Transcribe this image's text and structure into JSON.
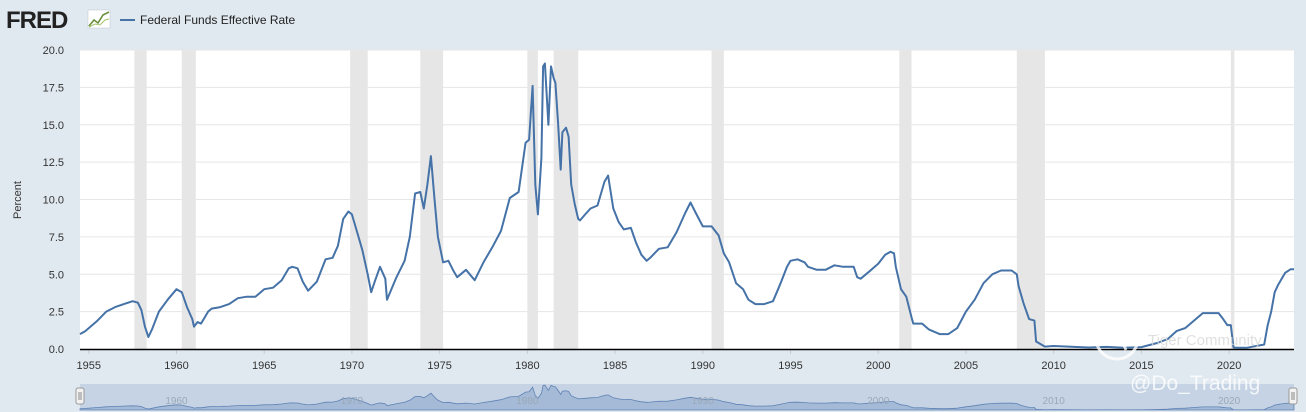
{
  "header": {
    "logo_text": "FRED",
    "logo_icon": "fred-chart-icon",
    "series_color": "#4572a7"
  },
  "watermark": {
    "community": "Tiger Community",
    "handle": "@Do_Trading"
  },
  "navigator": {
    "labels": [
      "1960",
      "1970",
      "1980",
      "1990",
      "2000",
      "2010",
      "2020"
    ]
  },
  "chart_data": {
    "type": "line",
    "title": "",
    "xlabel": "",
    "ylabel": "Percent",
    "xlim": [
      1954.5,
      2023.7
    ],
    "ylim": [
      0,
      20
    ],
    "y_ticks": [
      "0.0",
      "2.5",
      "5.0",
      "7.5",
      "10.0",
      "12.5",
      "15.0",
      "17.5",
      "20.0"
    ],
    "x_ticks": [
      "1955",
      "1960",
      "1965",
      "1970",
      "1975",
      "1980",
      "1985",
      "1990",
      "1995",
      "2000",
      "2005",
      "2010",
      "2015",
      "2020"
    ],
    "grid": "horizontal",
    "legend": "top-left",
    "recessions": [
      [
        1957.6,
        1958.3
      ],
      [
        1960.3,
        1961.1
      ],
      [
        1969.9,
        1970.9
      ],
      [
        1973.9,
        1975.2
      ],
      [
        1980.0,
        1980.6
      ],
      [
        1981.5,
        1982.9
      ],
      [
        1990.5,
        1991.2
      ],
      [
        2001.2,
        2001.9
      ],
      [
        2007.9,
        2009.5
      ],
      [
        2020.1,
        2020.3
      ]
    ],
    "series": [
      {
        "name": "Federal Funds Effective Rate",
        "color": "#4572a7",
        "x": [
          1954.5,
          1954.8,
          1955.0,
          1955.5,
          1956.0,
          1956.5,
          1957.0,
          1957.5,
          1957.8,
          1958.0,
          1958.2,
          1958.4,
          1958.6,
          1959.0,
          1959.5,
          1960.0,
          1960.3,
          1960.6,
          1960.9,
          1961.0,
          1961.2,
          1961.4,
          1961.6,
          1961.8,
          1962.0,
          1962.5,
          1963.0,
          1963.5,
          1964.0,
          1964.5,
          1965.0,
          1965.5,
          1966.0,
          1966.4,
          1966.6,
          1966.9,
          1967.2,
          1967.5,
          1968.0,
          1968.5,
          1968.9,
          1969.2,
          1969.5,
          1969.8,
          1970.0,
          1970.3,
          1970.6,
          1970.9,
          1971.1,
          1971.3,
          1971.6,
          1971.9,
          1972.0,
          1972.5,
          1973.0,
          1973.3,
          1973.6,
          1973.9,
          1974.1,
          1974.3,
          1974.5,
          1974.7,
          1974.9,
          1975.2,
          1975.5,
          1975.8,
          1976.0,
          1976.5,
          1977.0,
          1977.5,
          1978.0,
          1978.5,
          1979.0,
          1979.5,
          1979.9,
          1980.1,
          1980.3,
          1980.45,
          1980.6,
          1980.8,
          1980.9,
          1981.0,
          1981.2,
          1981.35,
          1981.5,
          1981.6,
          1981.75,
          1981.9,
          1982.0,
          1982.2,
          1982.35,
          1982.5,
          1982.7,
          1982.9,
          1983.0,
          1983.3,
          1983.6,
          1984.0,
          1984.4,
          1984.6,
          1984.9,
          1985.2,
          1985.5,
          1985.9,
          1986.2,
          1986.5,
          1986.8,
          1987.0,
          1987.5,
          1988.0,
          1988.5,
          1989.0,
          1989.3,
          1989.6,
          1990.0,
          1990.5,
          1990.9,
          1991.2,
          1991.5,
          1991.9,
          1992.3,
          1992.6,
          1993.0,
          1993.5,
          1994.0,
          1994.4,
          1994.8,
          1995.0,
          1995.4,
          1995.8,
          1996.0,
          1996.5,
          1997.0,
          1997.5,
          1998.0,
          1998.6,
          1998.8,
          1999.0,
          1999.5,
          2000.0,
          2000.4,
          2000.7,
          2000.9,
          2001.0,
          2001.3,
          2001.6,
          2001.9,
          2002.0,
          2002.5,
          2002.9,
          2003.5,
          2004.0,
          2004.5,
          2005.0,
          2005.5,
          2006.0,
          2006.5,
          2007.0,
          2007.6,
          2007.9,
          2008.0,
          2008.3,
          2008.6,
          2008.9,
          2009.0,
          2009.5,
          2010.0,
          2011.0,
          2012.0,
          2013.0,
          2014.0,
          2015.0,
          2015.9,
          2016.5,
          2017.0,
          2017.5,
          2018.0,
          2018.5,
          2019.0,
          2019.4,
          2019.6,
          2019.9,
          2020.1,
          2020.25,
          2020.5,
          2021.0,
          2022.0,
          2022.2,
          2022.4,
          2022.6,
          2022.8,
          2022.95,
          2023.2,
          2023.5,
          2023.7
        ],
        "values": [
          1.0,
          1.2,
          1.4,
          1.9,
          2.5,
          2.8,
          3.0,
          3.2,
          3.1,
          2.6,
          1.5,
          0.8,
          1.3,
          2.5,
          3.3,
          4.0,
          3.8,
          2.8,
          2.0,
          1.5,
          1.8,
          1.7,
          2.1,
          2.5,
          2.7,
          2.8,
          3.0,
          3.4,
          3.5,
          3.5,
          4.0,
          4.1,
          4.6,
          5.4,
          5.5,
          5.4,
          4.5,
          3.9,
          4.5,
          6.0,
          6.1,
          6.9,
          8.7,
          9.2,
          9.0,
          7.8,
          6.6,
          5.0,
          3.8,
          4.5,
          5.5,
          4.7,
          3.3,
          4.7,
          5.9,
          7.5,
          10.4,
          10.5,
          9.4,
          11.0,
          12.9,
          10.1,
          7.5,
          5.8,
          5.9,
          5.2,
          4.8,
          5.3,
          4.6,
          5.8,
          6.8,
          7.9,
          10.1,
          10.5,
          13.8,
          14.0,
          17.6,
          11.0,
          9.0,
          12.8,
          18.9,
          19.1,
          15.0,
          18.9,
          18.1,
          17.8,
          15.1,
          12.0,
          14.5,
          14.8,
          14.2,
          11.0,
          9.7,
          8.7,
          8.6,
          9.0,
          9.4,
          9.6,
          11.2,
          11.6,
          9.4,
          8.5,
          8.0,
          8.1,
          7.1,
          6.3,
          5.9,
          6.1,
          6.7,
          6.8,
          7.8,
          9.1,
          9.8,
          9.1,
          8.2,
          8.2,
          7.6,
          6.4,
          5.8,
          4.4,
          4.0,
          3.3,
          3.0,
          3.0,
          3.2,
          4.3,
          5.5,
          5.9,
          6.0,
          5.8,
          5.5,
          5.3,
          5.3,
          5.6,
          5.5,
          5.5,
          4.8,
          4.7,
          5.2,
          5.7,
          6.3,
          6.5,
          6.4,
          5.5,
          4.0,
          3.5,
          2.1,
          1.7,
          1.7,
          1.3,
          1.0,
          1.0,
          1.4,
          2.5,
          3.3,
          4.4,
          5.0,
          5.25,
          5.25,
          5.0,
          4.2,
          3.0,
          2.0,
          1.9,
          0.5,
          0.16,
          0.2,
          0.15,
          0.1,
          0.14,
          0.09,
          0.13,
          0.4,
          0.66,
          1.2,
          1.4,
          1.9,
          2.4,
          2.4,
          2.4,
          2.1,
          1.6,
          1.6,
          0.1,
          0.08,
          0.08,
          0.3,
          1.6,
          2.5,
          3.8,
          4.3,
          4.6,
          5.1,
          5.33,
          5.33
        ]
      }
    ]
  }
}
